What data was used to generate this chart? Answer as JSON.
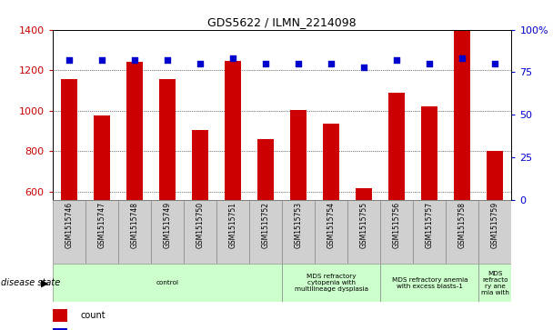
{
  "title": "GDS5622 / ILMN_2214098",
  "samples": [
    "GSM1515746",
    "GSM1515747",
    "GSM1515748",
    "GSM1515749",
    "GSM1515750",
    "GSM1515751",
    "GSM1515752",
    "GSM1515753",
    "GSM1515754",
    "GSM1515755",
    "GSM1515756",
    "GSM1515757",
    "GSM1515758",
    "GSM1515759"
  ],
  "counts": [
    1155,
    975,
    1240,
    1155,
    905,
    1245,
    860,
    1005,
    935,
    615,
    1090,
    1020,
    1395,
    800
  ],
  "percentile_ranks": [
    82,
    82,
    82,
    82,
    80,
    83,
    80,
    80,
    80,
    78,
    82,
    80,
    83,
    80
  ],
  "ylim_left": [
    560,
    1400
  ],
  "ylim_right": [
    0,
    100
  ],
  "yticks_left": [
    600,
    800,
    1000,
    1200,
    1400
  ],
  "yticks_right": [
    0,
    25,
    50,
    75,
    100
  ],
  "disease_groups": [
    {
      "label": "control",
      "start": 0,
      "end": 7
    },
    {
      "label": "MDS refractory\ncytopenia with\nmultilineage dysplasia",
      "start": 7,
      "end": 10
    },
    {
      "label": "MDS refractory anemia\nwith excess blasts-1",
      "start": 10,
      "end": 13
    },
    {
      "label": "MDS\nrefracto\nry ane\nmia with",
      "start": 13,
      "end": 14
    }
  ],
  "bar_color": "#cc0000",
  "dot_color": "#0000cc",
  "bar_width": 0.5,
  "left_tick_color": "#cc0000",
  "right_tick_color": "#0000cc",
  "disease_bg": "#ccffcc",
  "sample_bg": "#d0d0d0"
}
